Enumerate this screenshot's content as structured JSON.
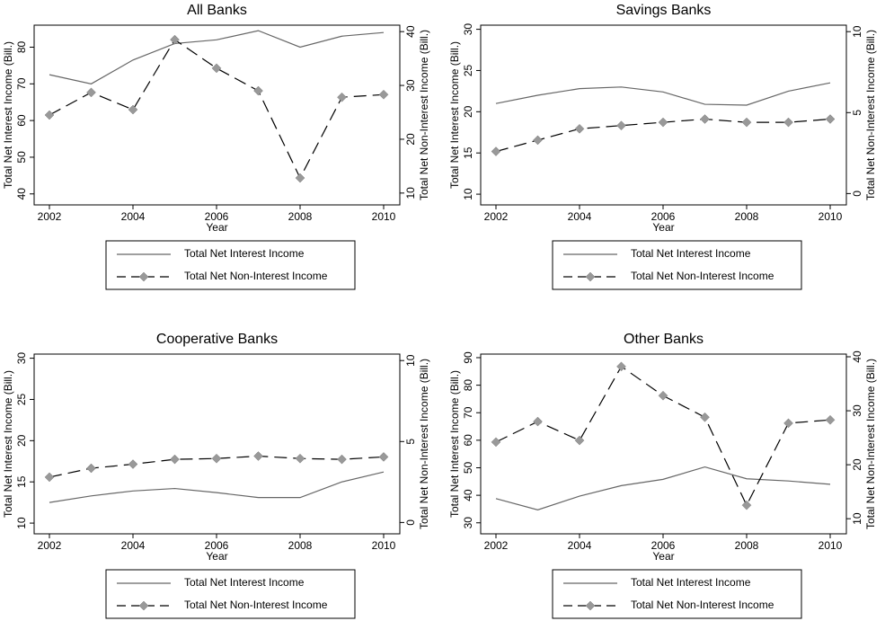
{
  "chart_data": [
    {
      "type": "line",
      "title": "All Banks",
      "xlabel": "Year",
      "ylabel": "Total Net Interest Income (Bill.)",
      "y2label": "Total Net Non-Interest Income (Bill.)",
      "x": [
        2002,
        2003,
        2004,
        2005,
        2006,
        2007,
        2008,
        2009,
        2010
      ],
      "xlim": [
        2002,
        2010
      ],
      "xticks": [
        2002,
        2004,
        2006,
        2008,
        2010
      ],
      "ylim": [
        37,
        86
      ],
      "yticks": [
        40,
        50,
        60,
        70,
        80
      ],
      "y2lim": [
        7.8,
        41.2
      ],
      "y2ticks": [
        10,
        20,
        30,
        40
      ],
      "legend": "bottom",
      "series": [
        {
          "name": "Total Net Interest Income",
          "color": "#666666",
          "dash": false,
          "values": [
            72.5,
            70,
            76.5,
            81,
            82,
            84.5,
            80,
            83,
            84
          ]
        },
        {
          "name": "Total Net Non-Interest Income",
          "color": "#000000",
          "marker_color": "#999999",
          "marker": "diamond",
          "dash": true,
          "axis": "y2",
          "values": [
            24.5,
            28.7,
            25.5,
            38.5,
            33.2,
            29,
            12.8,
            27.8,
            28.3
          ]
        }
      ]
    },
    {
      "type": "line",
      "title": "Savings Banks",
      "xlabel": "Year",
      "ylabel": "Total Net Interest Income (Bill.)",
      "y2label": "Total Net Non-Interest Income (Bill.)",
      "x": [
        2002,
        2003,
        2004,
        2005,
        2006,
        2007,
        2008,
        2009,
        2010
      ],
      "xlim": [
        2002,
        2010
      ],
      "xticks": [
        2002,
        2004,
        2006,
        2008,
        2010
      ],
      "ylim": [
        8.7,
        30.5
      ],
      "yticks": [
        10,
        15,
        20,
        25,
        30
      ],
      "y2lim": [
        -0.7,
        10.4
      ],
      "y2ticks": [
        0,
        5,
        10
      ],
      "legend": "bottom",
      "series": [
        {
          "name": "Total Net Interest Income",
          "color": "#666666",
          "dash": false,
          "values": [
            21,
            22,
            22.8,
            23,
            22.4,
            20.9,
            20.8,
            22.5,
            23.5
          ]
        },
        {
          "name": "Total Net Non-Interest Income",
          "color": "#000000",
          "marker_color": "#999999",
          "marker": "diamond",
          "dash": true,
          "axis": "y2",
          "values": [
            2.6,
            3.3,
            4,
            4.2,
            4.4,
            4.6,
            4.4,
            4.4,
            4.6
          ]
        }
      ]
    },
    {
      "type": "line",
      "title": "Cooperative Banks",
      "xlabel": "Year",
      "ylabel": "Total Net Interest Income (Bill.)",
      "y2label": "Total Net Non-Interest Income (Bill.)",
      "x": [
        2002,
        2003,
        2004,
        2005,
        2006,
        2007,
        2008,
        2009,
        2010
      ],
      "xlim": [
        2002,
        2010
      ],
      "xticks": [
        2002,
        2004,
        2006,
        2008,
        2010
      ],
      "ylim": [
        8.7,
        30.5
      ],
      "yticks": [
        10,
        15,
        20,
        25,
        30
      ],
      "y2lim": [
        -0.7,
        10.4
      ],
      "y2ticks": [
        0,
        5,
        10
      ],
      "legend": "bottom",
      "series": [
        {
          "name": "Total Net Interest Income",
          "color": "#666666",
          "dash": false,
          "values": [
            12.5,
            13.3,
            13.9,
            14.2,
            13.7,
            13.1,
            13.1,
            15,
            16.2
          ]
        },
        {
          "name": "Total Net Non-Interest Income",
          "color": "#000000",
          "marker_color": "#999999",
          "marker": "diamond",
          "dash": true,
          "axis": "y2",
          "values": [
            2.8,
            3.35,
            3.6,
            3.9,
            3.95,
            4.1,
            3.95,
            3.9,
            4.05
          ]
        }
      ]
    },
    {
      "type": "line",
      "title": "Other Banks",
      "xlabel": "Year",
      "ylabel": "Total Net Interest Income (Bill.)",
      "y2label": "Total Net Non-Interest Income (Bill.)",
      "x": [
        2002,
        2003,
        2004,
        2005,
        2006,
        2007,
        2008,
        2009,
        2010
      ],
      "xlim": [
        2002,
        2010
      ],
      "xticks": [
        2002,
        2004,
        2006,
        2008,
        2010
      ],
      "ylim": [
        26,
        91.3
      ],
      "yticks": [
        30,
        40,
        50,
        60,
        70,
        80,
        90
      ],
      "y2lim": [
        7.2,
        40.5
      ],
      "y2ticks": [
        10,
        20,
        30,
        40
      ],
      "legend": "bottom",
      "series": [
        {
          "name": "Total Net Interest Income",
          "color": "#666666",
          "dash": false,
          "values": [
            38.8,
            34.7,
            39.7,
            43.5,
            45.8,
            50.3,
            46,
            45.2,
            44
          ]
        },
        {
          "name": "Total Net Non-Interest Income",
          "color": "#000000",
          "marker_color": "#999999",
          "marker": "diamond",
          "dash": true,
          "axis": "y2",
          "values": [
            24.2,
            28,
            24.5,
            38.2,
            32.8,
            28.8,
            12.5,
            27.7,
            28.3
          ]
        }
      ]
    }
  ]
}
